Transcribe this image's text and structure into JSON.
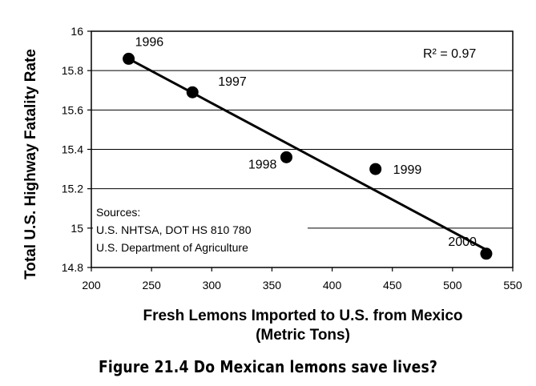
{
  "chart_data": {
    "type": "scatter",
    "xlabel_line1": "Fresh Lemons Imported to U.S. from Mexico",
    "xlabel_line2": "(Metric Tons)",
    "ylabel": "Total U.S. Highway Fatality Rate",
    "xlim": [
      200,
      550
    ],
    "ylim": [
      14.8,
      16
    ],
    "x_ticks": [
      "200",
      "250",
      "300",
      "350",
      "400",
      "450",
      "500",
      "550"
    ],
    "y_ticks": [
      "14.8",
      "15",
      "15.2",
      "15.4",
      "15.6",
      "15.8",
      "16"
    ],
    "grid": "horizontal",
    "points": [
      {
        "label": "1996",
        "x": 231,
        "y": 15.86
      },
      {
        "label": "1997",
        "x": 284,
        "y": 15.69
      },
      {
        "label": "1998",
        "x": 362,
        "y": 15.36
      },
      {
        "label": "1999",
        "x": 436,
        "y": 15.3
      },
      {
        "label": "2000",
        "x": 528,
        "y": 14.87
      }
    ],
    "trendline": {
      "x": [
        231,
        528
      ],
      "y": [
        15.86,
        14.89
      ]
    },
    "r_squared": "R² = 0.97",
    "sources": [
      "Sources:",
      "U.S. NHTSA, DOT HS 810 780",
      "U.S. Department of Agriculture"
    ]
  },
  "caption": "Figure 21.4 Do Mexican lemons save lives?"
}
